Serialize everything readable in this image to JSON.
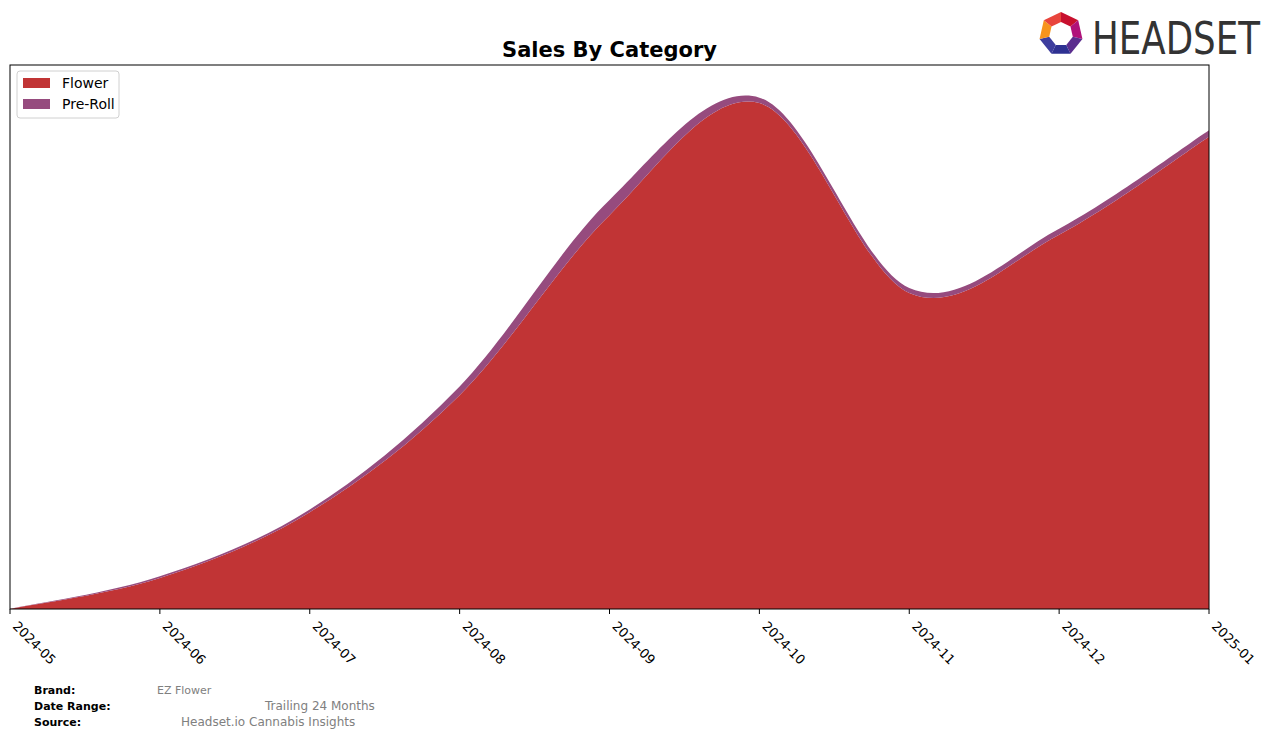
{
  "chart_data": {
    "type": "area",
    "title": "Sales By Category",
    "stacked": true,
    "legend": "upper-left",
    "grid": false,
    "tick_labels": "x",
    "x": [
      "2024-05",
      "2024-06",
      "2024-07",
      "2024-08",
      "2024-09",
      "2024-10",
      "2024-11",
      "2024-12",
      "2025-01"
    ],
    "ylim": [
      0,
      100
    ],
    "series": [
      {
        "name": "Flower",
        "color": "#c13435",
        "values": [
          0,
          5.7,
          17.8,
          39.3,
          72.4,
          93.0,
          58.1,
          68.8,
          86.8
        ]
      },
      {
        "name": "Pre-Roll",
        "color": "#964b7e",
        "values": [
          0,
          0.3,
          0.5,
          1.6,
          2.8,
          1.0,
          0.9,
          1.1,
          1.2
        ]
      }
    ]
  },
  "logo": "HEADSET",
  "footer": [
    {
      "label": "Brand:",
      "value": "EZ Flower"
    },
    {
      "label": "Date Range:",
      "value": "Trailing 24 Months"
    },
    {
      "label": "Source:",
      "value": "Headset.io Cannabis Insights"
    }
  ]
}
